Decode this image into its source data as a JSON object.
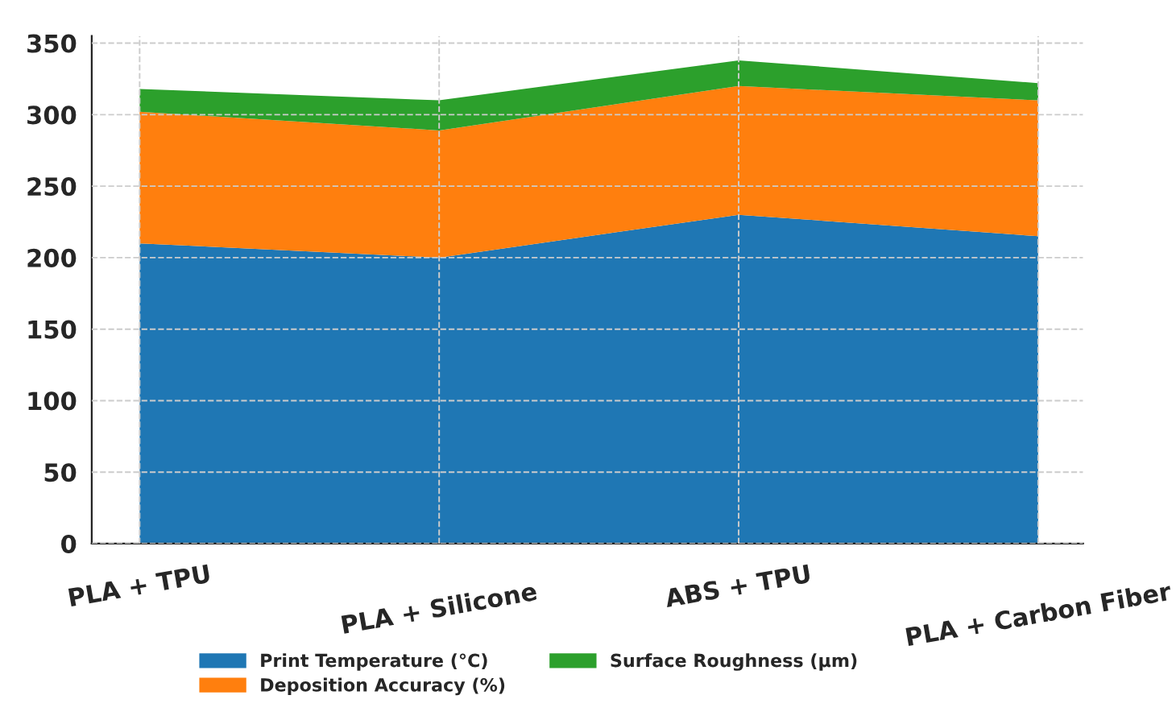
{
  "chart_data": {
    "type": "area",
    "stacked": true,
    "categories": [
      "PLA + TPU",
      "PLA + Silicone",
      "ABS + TPU",
      "PLA + Carbon Fiber"
    ],
    "series": [
      {
        "name": "Print Temperature (°C)",
        "color": "#1f77b4",
        "values": [
          210,
          200,
          230,
          215
        ]
      },
      {
        "name": "Deposition Accuracy (%)",
        "color": "#ff7f0e",
        "values": [
          92,
          89,
          90,
          95
        ]
      },
      {
        "name": "Surface Roughness (µm)",
        "color": "#2ca02c",
        "values": [
          16,
          21,
          18,
          12
        ]
      }
    ],
    "ylim": [
      0,
      355
    ],
    "yticks": [
      0,
      50,
      100,
      150,
      200,
      250,
      300,
      350
    ],
    "grid": true,
    "legend": "bottom"
  }
}
